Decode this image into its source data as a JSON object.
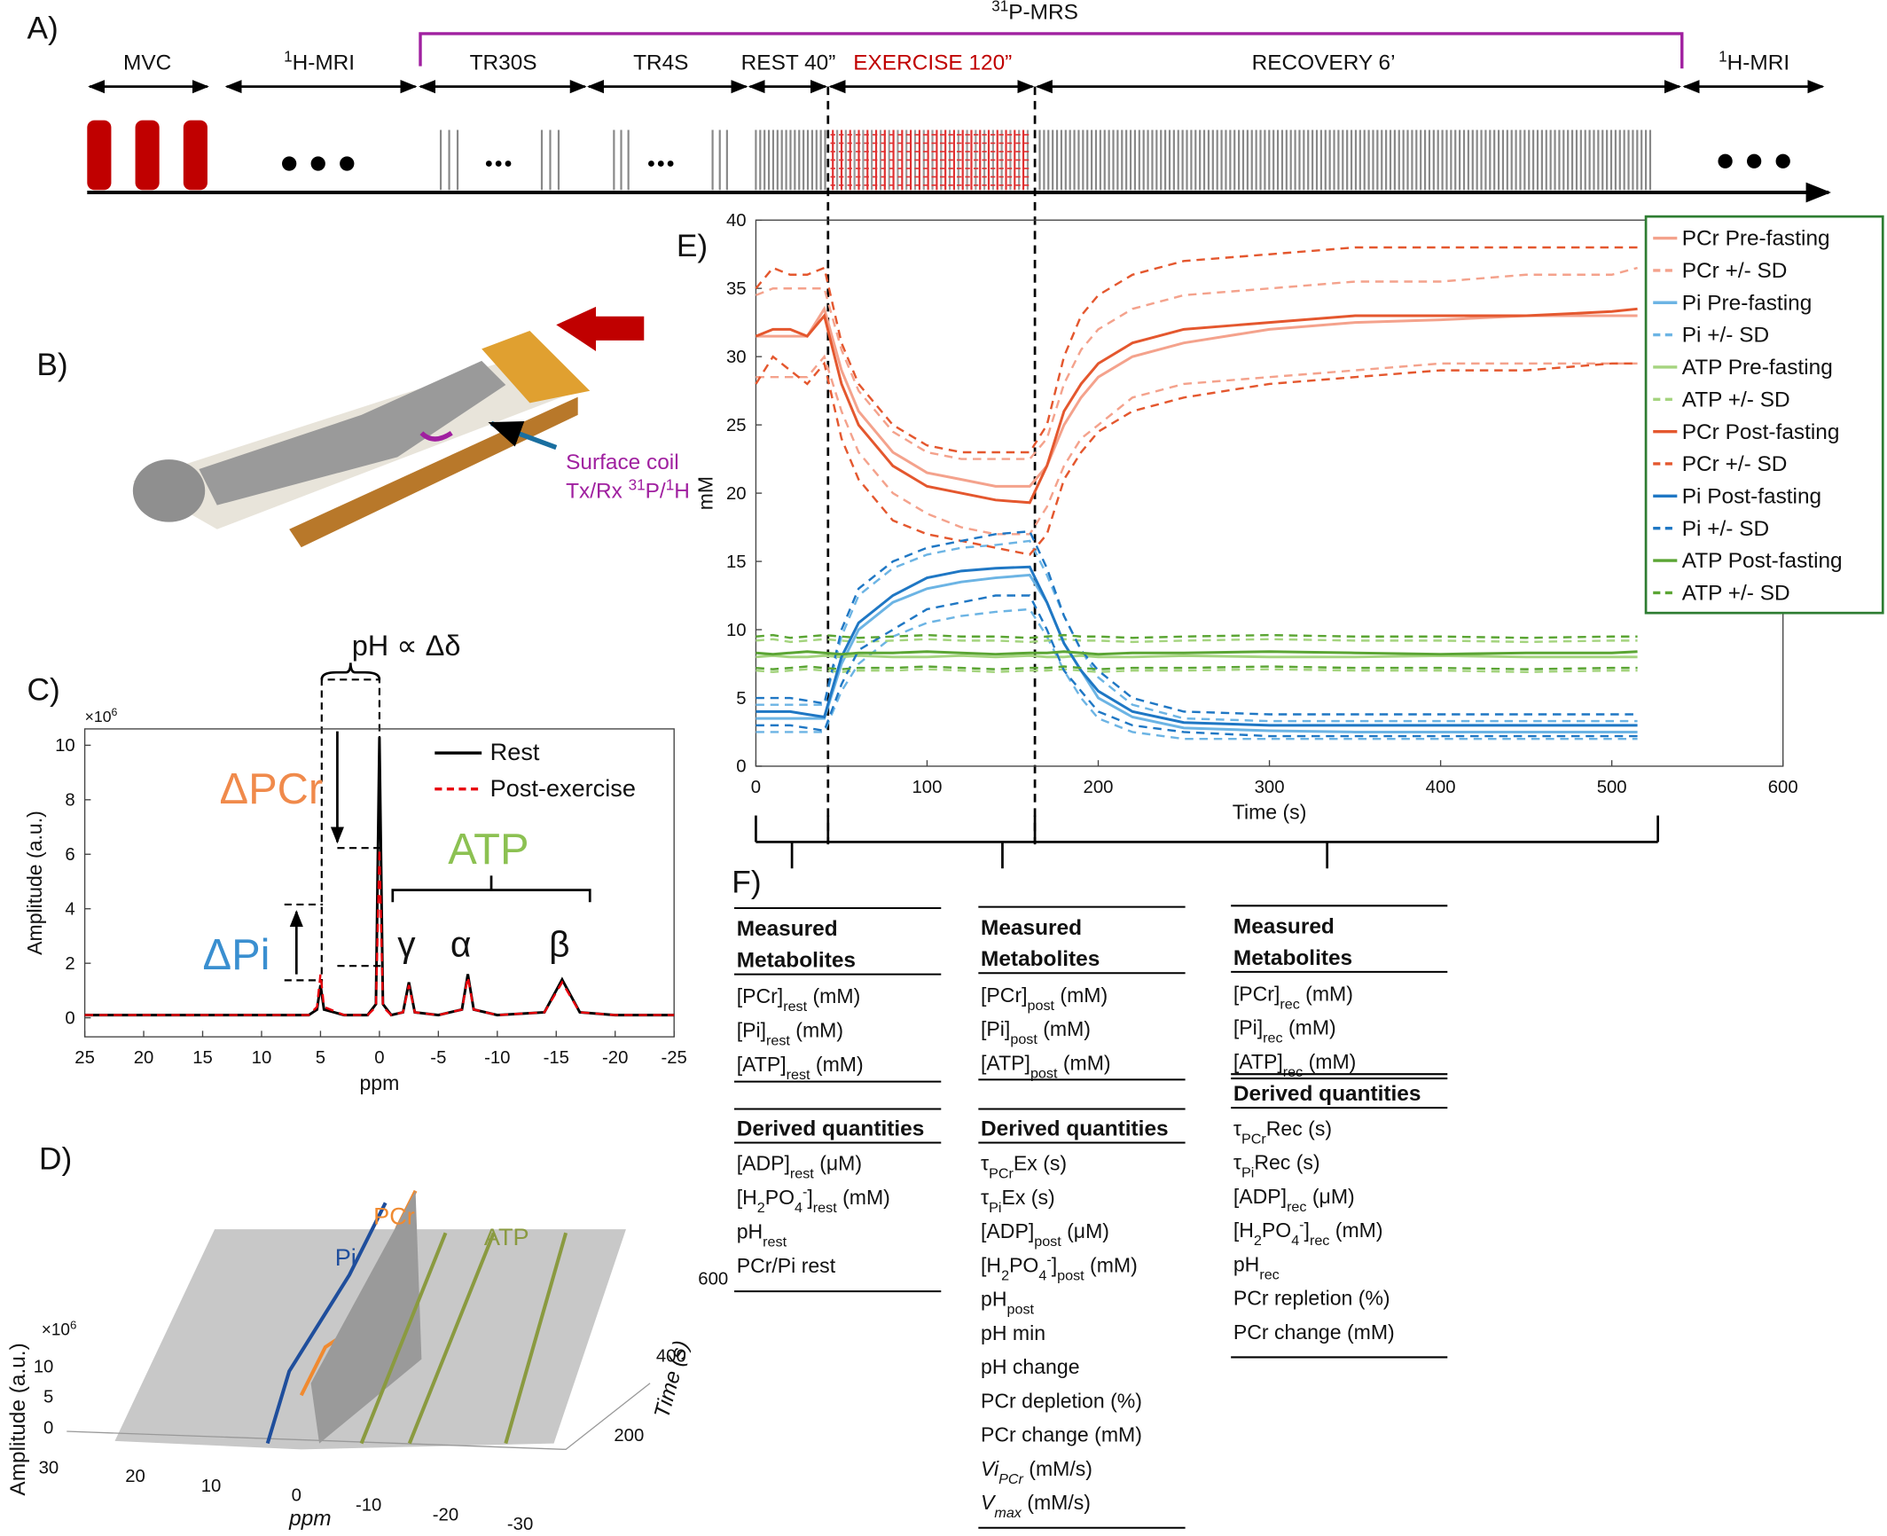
{
  "timeline": {
    "label": "A)",
    "mrs": [
      {
        "sup": "31"
      },
      "P-MRS"
    ],
    "segments": [
      "MVC",
      [
        {
          "sup": "1"
        },
        "H-MRI"
      ],
      "TR30S",
      "TR4S",
      "REST 40”",
      "EXERCISE 120”",
      "RECOVERY 6’",
      [
        {
          "sup": "1"
        },
        "H-MRI"
      ]
    ]
  },
  "panel_b": {
    "label": "B)",
    "coil": [
      "Surface coil",
      [
        "Tx/Rx ",
        {
          "sup": "31"
        },
        "P/",
        {
          "sup": "1"
        },
        "H"
      ]
    ]
  },
  "panel_d": {
    "label": "D)",
    "peaks": [
      "PCr",
      "Pi",
      "ATP"
    ],
    "zlabel": "Amplitude (a.u.)",
    "zmult": [
      "×10",
      {
        "sup": "6"
      }
    ],
    "zticks": [
      0,
      5,
      10
    ],
    "xlabel": "ppm",
    "xticks": [
      30,
      20,
      10,
      0,
      -10,
      -20,
      -30
    ],
    "ylabel": "Time (s)",
    "yticks": [
      200,
      400,
      600
    ]
  },
  "chart_data": [
    {
      "type": "line",
      "label": "E)",
      "xlabel": "Time (s)",
      "ylabel": "mM",
      "x": [
        0,
        10,
        20,
        30,
        40,
        50,
        60,
        80,
        100,
        120,
        140,
        160,
        170,
        180,
        190,
        200,
        220,
        250,
        300,
        350,
        400,
        450,
        500,
        515
      ],
      "xlim": [
        0,
        600
      ],
      "xticks": [
        0,
        100,
        200,
        300,
        400,
        500,
        600
      ],
      "ylim": [
        0,
        40
      ],
      "yticks": [
        0,
        5,
        10,
        15,
        20,
        25,
        30,
        35,
        40
      ],
      "legend": "upper right",
      "series": [
        {
          "name": "PCr Pre-fasting",
          "color": "#f4a28c",
          "values": [
            31.5,
            31.5,
            31.5,
            31.5,
            33.5,
            29,
            26,
            23,
            21.5,
            21,
            20.5,
            20.5,
            22,
            25,
            27,
            28.5,
            30,
            31,
            32,
            32.5,
            32.7,
            33,
            33,
            33
          ]
        },
        {
          "name": "PCr +/- SD",
          "color": "#f4a28c",
          "dash": true,
          "upper": [
            34.5,
            35,
            35,
            35,
            35,
            30.5,
            27.5,
            24.5,
            23,
            22.5,
            22.5,
            22.5,
            24,
            28,
            30.5,
            32,
            33.5,
            34.5,
            35,
            35.5,
            35.5,
            36,
            36,
            36.5
          ],
          "lower": [
            28.5,
            28.5,
            28.5,
            28.5,
            30,
            26,
            23,
            20,
            18.5,
            17.5,
            17,
            17,
            19,
            22,
            24,
            25,
            27,
            28,
            28.5,
            29,
            29.5,
            29.5,
            29.5,
            29.5
          ]
        },
        {
          "name": "Pi Pre-fasting",
          "color": "#6cb4e4",
          "values": [
            3.5,
            3.5,
            3.5,
            3.5,
            3.5,
            7.5,
            10,
            12,
            13,
            13.5,
            13.8,
            14,
            12,
            9,
            7,
            5,
            3.6,
            2.8,
            2.6,
            2.5,
            2.5,
            2.5,
            2.5,
            2.5
          ]
        },
        {
          "name": "Pi +/- SD",
          "color": "#6cb4e4",
          "dash": true,
          "upper": [
            4.5,
            4.5,
            4.5,
            4.5,
            4.5,
            9.5,
            12.5,
            14.5,
            15.5,
            16,
            16.2,
            16.5,
            14,
            11,
            8.5,
            6.5,
            4.5,
            3.5,
            3.3,
            3.3,
            3.3,
            3.3,
            3.3,
            3.3
          ],
          "lower": [
            2.5,
            2.5,
            2.5,
            2.5,
            2.5,
            5.5,
            7.5,
            9.5,
            10.5,
            11,
            11.3,
            11.5,
            9.5,
            7,
            5,
            3.5,
            2.5,
            2,
            2,
            2,
            2,
            2,
            2,
            2
          ]
        },
        {
          "name": "ATP Pre-fasting",
          "color": "#a5d47f",
          "values": [
            8,
            8.1,
            8,
            8,
            8.1,
            8,
            8.1,
            8,
            8,
            8.1,
            8,
            8.1,
            8,
            8,
            8.1,
            8,
            8,
            8.1,
            8,
            8,
            8.1,
            8,
            8,
            8
          ]
        },
        {
          "name": "ATP +/- SD",
          "color": "#a5d47f",
          "dash": true,
          "upper": [
            9.2,
            9.3,
            9.1,
            9.2,
            9.3,
            9.2,
            9.1,
            9.2,
            9.3,
            9.2,
            9.2,
            9.1,
            9.2,
            9.3,
            9.2,
            9.2,
            9.1,
            9.2,
            9.3,
            9.2,
            9.2,
            9.1,
            9.2,
            9.2
          ],
          "lower": [
            7,
            6.9,
            7,
            7.1,
            7,
            6.9,
            7,
            7,
            7.1,
            7,
            6.9,
            7,
            7,
            7.1,
            7,
            6.9,
            7,
            7,
            7.1,
            7,
            7,
            6.9,
            7,
            7
          ]
        },
        {
          "name": "PCr Post-fasting",
          "color": "#e4572e",
          "values": [
            31.5,
            32,
            32,
            31.5,
            33,
            28,
            25,
            22,
            20.5,
            20,
            19.5,
            19.3,
            22,
            26,
            28,
            29.5,
            31,
            32,
            32.5,
            33,
            33,
            33,
            33.3,
            33.5
          ]
        },
        {
          "name": "PCr +/- SD",
          "color": "#e4572e",
          "dash": true,
          "upper": [
            35,
            36.5,
            36,
            36,
            36.5,
            31,
            28,
            25,
            23.5,
            23,
            23,
            23,
            25,
            30,
            33,
            34.5,
            36,
            37,
            37.5,
            38,
            38,
            38,
            38,
            38
          ],
          "lower": [
            28,
            30,
            29,
            28,
            29.5,
            24,
            21,
            18,
            17,
            16.5,
            16,
            15.5,
            17,
            21,
            23,
            24.5,
            26,
            27,
            28,
            28.5,
            29,
            29,
            29.5,
            29.5
          ]
        },
        {
          "name": "Pi Post-fasting",
          "color": "#1f77c4",
          "values": [
            4,
            4,
            4,
            3.8,
            3.6,
            8,
            10.5,
            12.5,
            13.8,
            14.3,
            14.5,
            14.6,
            12,
            9,
            7,
            5.5,
            4,
            3.2,
            3,
            3,
            3,
            3,
            3,
            3
          ]
        },
        {
          "name": "Pi +/- SD",
          "color": "#1f77c4",
          "dash": true,
          "upper": [
            5,
            5,
            5,
            4.8,
            4.6,
            10,
            13,
            15,
            16,
            16.5,
            17,
            17.2,
            14.5,
            11,
            8.5,
            7,
            5,
            4,
            3.8,
            3.8,
            3.8,
            3.8,
            3.8,
            3.8
          ],
          "lower": [
            3,
            3,
            3,
            2.8,
            2.6,
            6,
            8.5,
            10,
            11.5,
            12,
            12.5,
            12.5,
            10,
            7,
            5.5,
            4,
            3,
            2.5,
            2.2,
            2.2,
            2.2,
            2.2,
            2.2,
            2.2
          ]
        },
        {
          "name": "ATP Post-fasting",
          "color": "#5ba534",
          "values": [
            8.3,
            8.2,
            8.3,
            8.4,
            8.3,
            8.2,
            8.3,
            8.3,
            8.4,
            8.3,
            8.2,
            8.3,
            8.3,
            8.4,
            8.3,
            8.2,
            8.3,
            8.3,
            8.4,
            8.3,
            8.2,
            8.3,
            8.3,
            8.4
          ]
        },
        {
          "name": "ATP +/- SD",
          "color": "#5ba534",
          "dash": true,
          "upper": [
            9.5,
            9.6,
            9.4,
            9.5,
            9.6,
            9.5,
            9.4,
            9.5,
            9.6,
            9.5,
            9.5,
            9.4,
            9.5,
            9.6,
            9.5,
            9.5,
            9.4,
            9.5,
            9.6,
            9.5,
            9.5,
            9.4,
            9.5,
            9.5
          ],
          "lower": [
            7.2,
            7.1,
            7.2,
            7.3,
            7.2,
            7.1,
            7.2,
            7.2,
            7.3,
            7.2,
            7.1,
            7.2,
            7.2,
            7.3,
            7.2,
            7.1,
            7.2,
            7.2,
            7.3,
            7.2,
            7.2,
            7.1,
            7.2,
            7.2
          ]
        }
      ]
    },
    {
      "type": "line",
      "label": "C)",
      "xlabel": "ppm",
      "ylabel": "Amplitude (a.u.)",
      "y_multiplier": [
        "×10",
        {
          "sup": "6"
        }
      ],
      "x": [
        25,
        20,
        15,
        10,
        6,
        5.3,
        5,
        4.7,
        3,
        1,
        0.3,
        0,
        -0.3,
        -1,
        -2,
        -2.5,
        -3,
        -5,
        -7,
        -7.5,
        -8,
        -10,
        -14,
        -15.5,
        -17,
        -20,
        -25
      ],
      "xlim": [
        25,
        -25
      ],
      "xticks": [
        25,
        20,
        15,
        10,
        5,
        0,
        -5,
        -10,
        -15,
        -20,
        -25
      ],
      "ylim": [
        -0.7,
        10.6
      ],
      "yticks": [
        0,
        2,
        4,
        6,
        8,
        10
      ],
      "legend": "upper right",
      "series": [
        {
          "name": "Rest",
          "color": "#000000",
          "values": [
            0.1,
            0.1,
            0.1,
            0.1,
            0.1,
            0.3,
            1.2,
            0.3,
            0.1,
            0.1,
            0.5,
            10.3,
            0.5,
            0.1,
            0.2,
            1.3,
            0.2,
            0.1,
            0.3,
            1.6,
            0.3,
            0.1,
            0.2,
            1.4,
            0.2,
            0.1,
            0.1
          ]
        },
        {
          "name": "Post-exercise",
          "color": "#e8000b",
          "dash": true,
          "values": [
            0.1,
            0.1,
            0.1,
            0.1,
            0.1,
            0.4,
            1.6,
            0.4,
            0.1,
            0.1,
            0.4,
            6.2,
            0.4,
            0.1,
            0.2,
            1.2,
            0.2,
            0.1,
            0.3,
            1.5,
            0.3,
            0.1,
            0.2,
            1.3,
            0.2,
            0.1,
            0.1
          ]
        }
      ],
      "annotations": {
        "ph": "pH ∝ Δδ",
        "dpcr": "ΔPCr",
        "atp": "ATP",
        "dpi": "ΔPi",
        "gamma": "γ",
        "alpha": "α",
        "beta": "β"
      }
    }
  ],
  "table_f": {
    "label": "F)",
    "columns": [
      {
        "measured_header": [
          "Measured",
          "Metabolites"
        ],
        "measured": [
          [
            "[PCr]",
            {
              "sub": "rest"
            },
            " (mM)"
          ],
          [
            "[Pi]",
            {
              "sub": "rest"
            },
            " (mM)"
          ],
          [
            "[ATP]",
            {
              "sub": "rest"
            },
            " (mM)"
          ]
        ],
        "derived_header": "Derived quantities",
        "derived": [
          [
            "[ADP]",
            {
              "sub": "rest"
            },
            " (μM)"
          ],
          [
            "[H",
            {
              "sub": "2"
            },
            "PO",
            {
              "sub": "4"
            },
            {
              "sup": "-"
            },
            "]",
            {
              "sub": "rest"
            },
            " (mM)"
          ],
          [
            "pH",
            {
              "sub": "rest"
            }
          ],
          "PCr/Pi rest"
        ]
      },
      {
        "measured_header": [
          "Measured",
          "Metabolites"
        ],
        "measured": [
          [
            "[PCr]",
            {
              "sub": "post"
            },
            " (mM)"
          ],
          [
            "[Pi]",
            {
              "sub": "post"
            },
            " (mM)"
          ],
          [
            "[ATP]",
            {
              "sub": "post"
            },
            " (mM)"
          ]
        ],
        "derived_header": "Derived quantities",
        "derived": [
          [
            "τ",
            {
              "sub": "PCr"
            },
            "Ex (s)"
          ],
          [
            "τ",
            {
              "sub": "Pi"
            },
            "Ex (s)"
          ],
          [
            "[ADP]",
            {
              "sub": "post"
            },
            " (μM)"
          ],
          [
            "[H",
            {
              "sub": "2"
            },
            "PO",
            {
              "sub": "4"
            },
            {
              "sup": "-"
            },
            "]",
            {
              "sub": "post"
            },
            " (mM)"
          ],
          [
            "pH",
            {
              "sub": "post"
            }
          ],
          "pH min",
          "pH change",
          "PCr depletion (%)",
          "PCr change (mM)",
          [
            {
              "i": "Vi"
            },
            {
              "isub": "PCr"
            },
            " (mM/s)"
          ],
          [
            {
              "i": "V"
            },
            {
              "isub": "max"
            },
            " (mM/s)"
          ]
        ]
      },
      {
        "measured_header": [
          "Measured",
          "Metabolites"
        ],
        "measured": [
          [
            "[PCr]",
            {
              "sub": "rec"
            },
            " (mM)"
          ],
          [
            "[Pi]",
            {
              "sub": "rec"
            },
            " (mM)"
          ],
          [
            "[ATP]",
            {
              "sub": "rec"
            },
            " (mM)"
          ]
        ],
        "derived_header": "Derived quantities",
        "derived": [
          [
            "τ",
            {
              "sub": "PCr"
            },
            "Rec (s)"
          ],
          [
            "τ",
            {
              "sub": "Pi"
            },
            "Rec (s)"
          ],
          [
            "[ADP]",
            {
              "sub": "rec"
            },
            " (μM)"
          ],
          [
            "[H",
            {
              "sub": "2"
            },
            "PO",
            {
              "sub": "4"
            },
            {
              "sup": "-"
            },
            "]",
            {
              "sub": "rec"
            },
            " (mM)"
          ],
          [
            "pH",
            {
              "sub": "rec"
            }
          ],
          "PCr repletion (%)",
          "PCr change (mM)"
        ]
      }
    ]
  }
}
